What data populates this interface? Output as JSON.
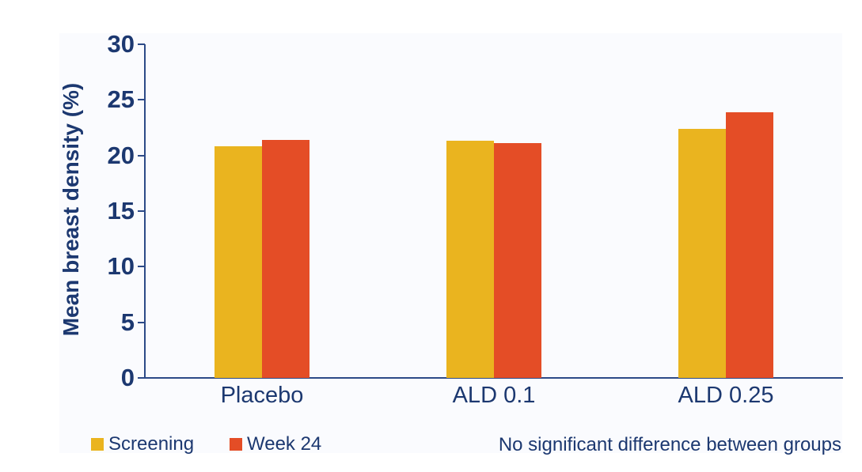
{
  "chart_data": {
    "type": "bar",
    "title": "",
    "xlabel": "",
    "ylabel": "Mean breast density (%)",
    "ylim": [
      0,
      30
    ],
    "yticks": [
      0,
      5,
      10,
      15,
      20,
      25,
      30
    ],
    "grid": false,
    "legend_position": "bottom-left",
    "categories": [
      "Placebo",
      "ALD 0.1",
      "ALD 0.25"
    ],
    "series": [
      {
        "name": "Screening",
        "color": "#EAB41F",
        "values": [
          20.8,
          21.3,
          22.4
        ]
      },
      {
        "name": "Week 24",
        "color": "#E44D26",
        "values": [
          21.4,
          21.1,
          23.9
        ]
      }
    ],
    "annotation": "No significant difference between groups"
  },
  "colors": {
    "text": "#1C3870",
    "axis_line": "#2C4A87",
    "panel_background": "#FAFBFE",
    "page_background": "#FFFFFF"
  }
}
